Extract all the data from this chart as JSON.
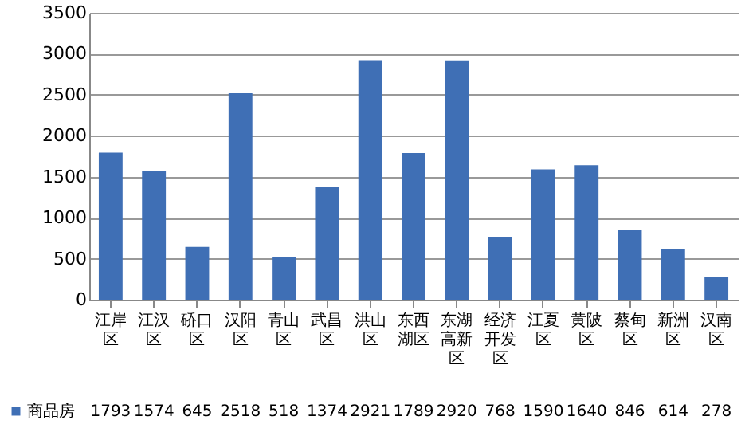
{
  "chart_data": {
    "type": "bar",
    "categories": [
      "江岸区",
      "江汉区",
      "硚口区",
      "汉阳区",
      "青山区",
      "武昌区",
      "洪山区",
      "东西湖区",
      "东湖高新区",
      "经济开发区",
      "江夏区",
      "黄陂区",
      "蔡甸区",
      "新洲区",
      "汉南区"
    ],
    "series": [
      {
        "name": "商品房",
        "color": "#3f6fb5",
        "values": [
          1793,
          1574,
          645,
          2518,
          518,
          1374,
          2921,
          1789,
          2920,
          768,
          1590,
          1640,
          846,
          614,
          278
        ]
      }
    ],
    "ylim": [
      0,
      3500
    ],
    "yticks": [
      0,
      500,
      1000,
      1500,
      2000,
      2500,
      3000,
      3500
    ],
    "grid": "y",
    "data_labels": true,
    "legend": "bottom"
  }
}
